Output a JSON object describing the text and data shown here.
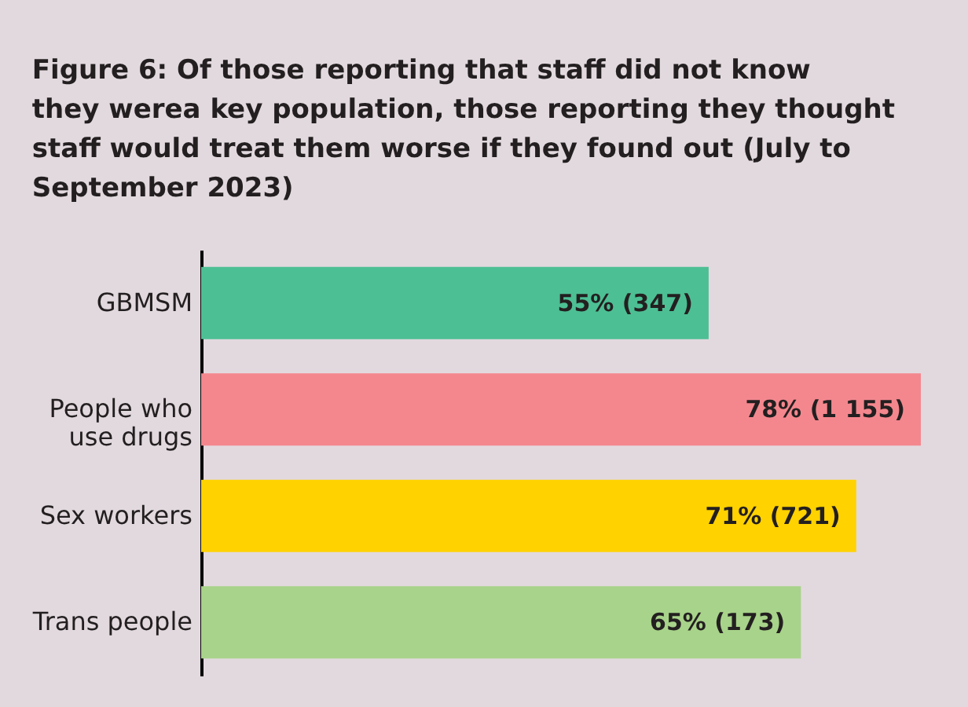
{
  "chart_data": {
    "type": "bar",
    "orientation": "horizontal",
    "title": "Figure 6: Of those reporting that staff did not know they werea key population, those reporting they thought staff would treat them worse if they found out (July to September 2023)",
    "categories": [
      "GBMSM",
      "People who use drugs",
      "Sex workers",
      "Trans people"
    ],
    "values": [
      55,
      78,
      71,
      65
    ],
    "colors": [
      "#4dbf94",
      "#f4878e",
      "#ffd200",
      "#a8d38a"
    ],
    "value_labels": [
      "55% (347)",
      "78% (1 155)",
      "71% (721)",
      "65% (173)"
    ]
  }
}
